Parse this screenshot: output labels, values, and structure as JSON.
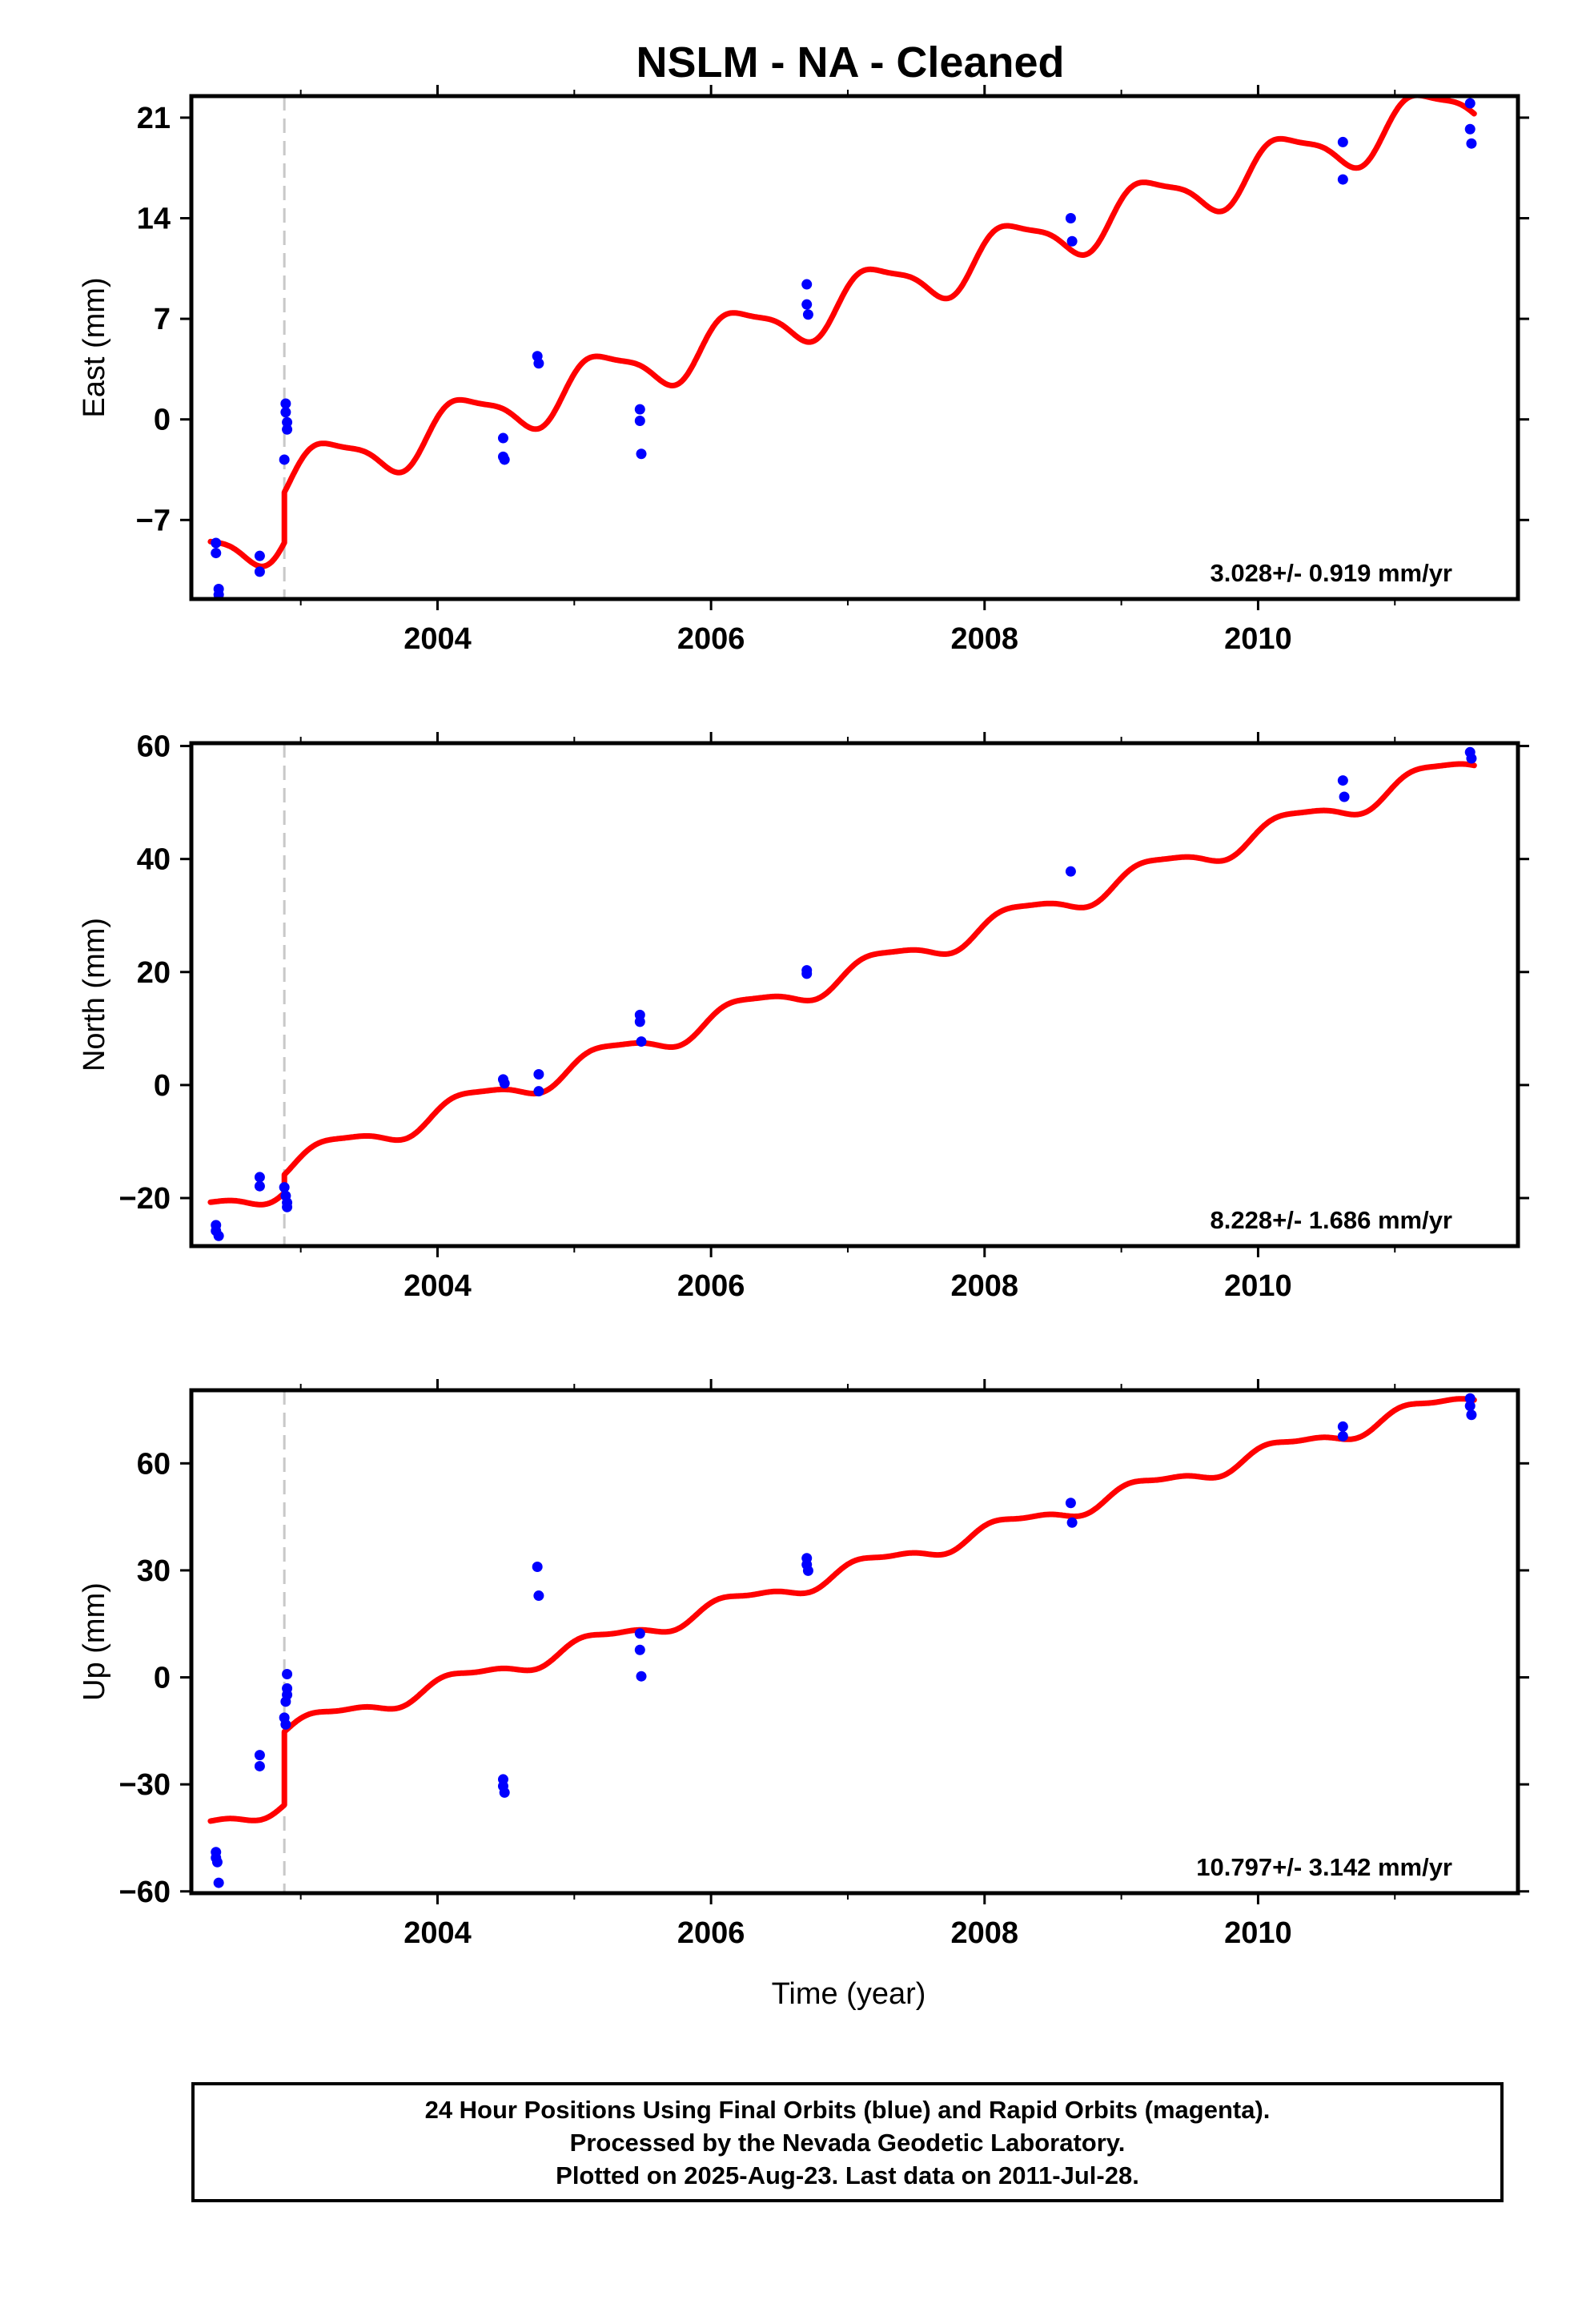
{
  "title": "NSLM  - NA - Cleaned",
  "xlabel": "Time (year)",
  "colors": {
    "fit": "#ff0000",
    "final_points": "#0000ff",
    "offset_line": "#c8c8c8",
    "frame": "#000000"
  },
  "caption": [
    "24 Hour Positions Using Final Orbits (blue) and Rapid Orbits (magenta).",
    "Processed by the Nevada Geodetic Laboratory.",
    "Plotted on 2025-Aug-23. Last data on 2011-Jul-28."
  ],
  "chart_data": [
    {
      "type": "scatter",
      "component": "East",
      "ylabel": "East (mm)",
      "xlim": [
        2002.2,
        2011.9
      ],
      "ylim": [
        -12.5,
        22.5
      ],
      "xticks": [
        2004,
        2006,
        2008,
        2010
      ],
      "xtick_labels": [
        "2004",
        "2006",
        "2008",
        "2010"
      ],
      "yticks": [
        -7,
        0,
        7,
        14,
        21
      ],
      "ytick_labels": [
        "−7",
        "0",
        "7",
        "14",
        "21"
      ],
      "rate_label": "3.028+/- 0.919 mm/yr",
      "offset_epoch": 2002.88,
      "fit": {
        "rate": 3.028,
        "ref_epoch": 2007.0,
        "intercept_before": 4.8,
        "intercept_after": 8.3,
        "annual_amp": 1.75,
        "annual_phase": 0.3,
        "semiannual_amp": 0.45,
        "semiannual_phase": 1.2
      },
      "series": [
        {
          "values": [
            [
              2002.38,
              -8.6
            ],
            [
              2002.38,
              -9.3
            ],
            [
              2002.4,
              -11.8
            ],
            [
              2002.4,
              -12.2
            ],
            [
              2002.7,
              -9.5
            ],
            [
              2002.7,
              -10.6
            ],
            [
              2002.88,
              -2.8
            ],
            [
              2002.89,
              1.1
            ],
            [
              2002.89,
              0.5
            ],
            [
              2002.9,
              -0.7
            ],
            [
              2002.9,
              -0.2
            ],
            [
              2004.48,
              -1.3
            ],
            [
              2004.48,
              -2.6
            ],
            [
              2004.49,
              -2.8
            ],
            [
              2004.73,
              4.4
            ],
            [
              2004.74,
              3.9
            ],
            [
              2005.48,
              0.7
            ],
            [
              2005.48,
              -0.1
            ],
            [
              2005.49,
              -2.4
            ],
            [
              2006.7,
              9.4
            ],
            [
              2006.7,
              8.0
            ],
            [
              2006.71,
              7.3
            ],
            [
              2008.63,
              14.0
            ],
            [
              2008.64,
              12.4
            ],
            [
              2010.62,
              19.3
            ],
            [
              2010.62,
              16.7
            ],
            [
              2011.55,
              22.0
            ],
            [
              2011.55,
              20.2
            ],
            [
              2011.56,
              19.2
            ]
          ]
        }
      ]
    },
    {
      "type": "scatter",
      "component": "North",
      "ylabel": "North (mm)",
      "xlim": [
        2002.2,
        2011.9
      ],
      "ylim": [
        -28.5,
        60.5
      ],
      "xticks": [
        2004,
        2006,
        2008,
        2010
      ],
      "xtick_labels": [
        "2004",
        "2006",
        "2008",
        "2010"
      ],
      "yticks": [
        -20,
        0,
        20,
        40,
        60
      ],
      "ytick_labels": [
        "−20",
        "0",
        "20",
        "40",
        "60"
      ],
      "rate_label": "8.228+/- 1.686 mm/yr",
      "offset_epoch": 2002.88,
      "fit": {
        "rate": 8.228,
        "ref_epoch": 2007.0,
        "intercept_before": 16.4,
        "intercept_after": 19.6,
        "annual_amp": 2.1,
        "annual_phase": 0.1,
        "semiannual_amp": 0.5,
        "semiannual_phase": 0.9
      },
      "series": [
        {
          "values": [
            [
              2002.38,
              -24.8
            ],
            [
              2002.38,
              -25.8
            ],
            [
              2002.4,
              -26.7
            ],
            [
              2002.7,
              -16.3
            ],
            [
              2002.7,
              -17.9
            ],
            [
              2002.88,
              -18.1
            ],
            [
              2002.89,
              -19.6
            ],
            [
              2002.9,
              -20.8
            ],
            [
              2002.9,
              -21.6
            ],
            [
              2004.48,
              1.0
            ],
            [
              2004.49,
              0.3
            ],
            [
              2004.74,
              1.9
            ],
            [
              2004.74,
              -1.1
            ],
            [
              2005.48,
              12.4
            ],
            [
              2005.48,
              11.2
            ],
            [
              2005.49,
              7.7
            ],
            [
              2006.7,
              20.3
            ],
            [
              2006.7,
              19.7
            ],
            [
              2008.63,
              37.8
            ],
            [
              2010.62,
              53.9
            ],
            [
              2010.63,
              51.0
            ],
            [
              2011.55,
              58.9
            ],
            [
              2011.56,
              57.8
            ]
          ]
        }
      ]
    },
    {
      "type": "scatter",
      "component": "Up",
      "ylabel": "Up (mm)",
      "xlabel": "Time (year)",
      "xlim": [
        2002.2,
        2011.9
      ],
      "ylim": [
        -60.5,
        80.5
      ],
      "xticks": [
        2004,
        2006,
        2008,
        2010
      ],
      "xtick_labels": [
        "2004",
        "2006",
        "2008",
        "2010"
      ],
      "yticks": [
        -60,
        -30,
        0,
        30,
        60
      ],
      "ytick_labels": [
        "−60",
        "−30",
        "0",
        "30",
        "60"
      ],
      "rate_label": "10.797+/- 3.142 mm/yr",
      "offset_epoch": 2002.88,
      "fit": {
        "rate": 10.797,
        "ref_epoch": 2007.0,
        "intercept_before": 9.3,
        "intercept_after": 29.8,
        "annual_amp": 2.3,
        "annual_phase": 0.5,
        "semiannual_amp": 0.8,
        "semiannual_phase": 1.5
      },
      "series": [
        {
          "values": [
            [
              2002.38,
              -49.0
            ],
            [
              2002.38,
              -50.6
            ],
            [
              2002.39,
              -51.8
            ],
            [
              2002.4,
              -57.6
            ],
            [
              2002.7,
              -21.8
            ],
            [
              2002.7,
              -24.9
            ],
            [
              2002.88,
              -11.3
            ],
            [
              2002.89,
              -13.2
            ],
            [
              2002.89,
              -6.8
            ],
            [
              2002.9,
              -4.9
            ],
            [
              2002.9,
              -3.1
            ],
            [
              2002.9,
              0.9
            ],
            [
              2004.48,
              -28.6
            ],
            [
              2004.48,
              -30.5
            ],
            [
              2004.49,
              -32.3
            ],
            [
              2004.73,
              31.0
            ],
            [
              2004.74,
              22.9
            ],
            [
              2005.48,
              12.3
            ],
            [
              2005.48,
              7.7
            ],
            [
              2005.49,
              0.3
            ],
            [
              2006.7,
              33.4
            ],
            [
              2006.7,
              31.6
            ],
            [
              2006.71,
              29.9
            ],
            [
              2008.63,
              48.9
            ],
            [
              2008.64,
              43.4
            ],
            [
              2010.62,
              70.3
            ],
            [
              2010.62,
              67.6
            ],
            [
              2011.55,
              78.2
            ],
            [
              2011.55,
              76.1
            ],
            [
              2011.56,
              73.6
            ]
          ]
        }
      ]
    }
  ]
}
